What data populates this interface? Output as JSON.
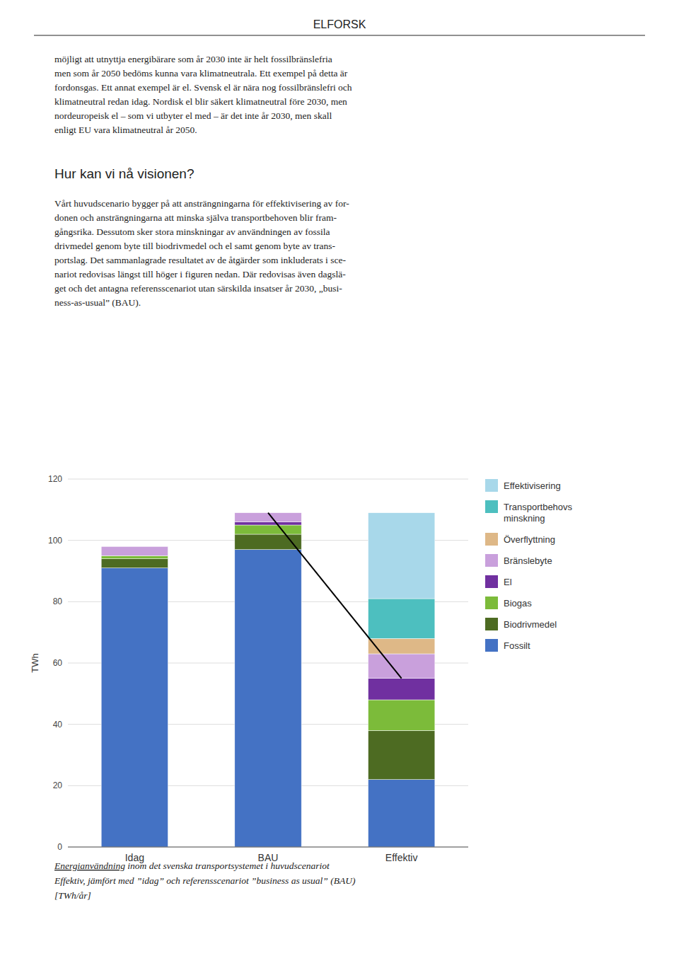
{
  "chart_data": {
    "type": "bar",
    "stacked": true,
    "categories": [
      "Idag",
      "BAU",
      "Effektiv"
    ],
    "series": [
      {
        "name": "Fossilt",
        "color": "#4472C4",
        "values": [
          91,
          97,
          22
        ]
      },
      {
        "name": "Biodrivmedel",
        "color": "#4D6B22",
        "values": [
          3,
          5,
          16
        ]
      },
      {
        "name": "Biogas",
        "color": "#7CBB3A",
        "values": [
          1,
          3,
          10
        ]
      },
      {
        "name": "El",
        "color": "#7030A0",
        "values": [
          0,
          1,
          7
        ]
      },
      {
        "name": "Bränslebyte",
        "color": "#C9A0DC",
        "values": [
          3,
          3,
          8
        ]
      },
      {
        "name": "Överflyttning",
        "color": "#DEB887",
        "values": [
          0,
          0,
          5
        ]
      },
      {
        "name": "Transportbehovs\nminskning",
        "color": "#4DBFBF",
        "values": [
          0,
          0,
          13
        ]
      },
      {
        "name": "Effektivisering",
        "color": "#A8D8EA",
        "values": [
          0,
          0,
          28
        ]
      }
    ],
    "ylabel": "TWh",
    "ylim": [
      0,
      120
    ],
    "yticks": [
      0,
      20,
      40,
      60,
      80,
      100,
      120
    ],
    "grid": true,
    "legend": "right",
    "line": {
      "categories": [
        "BAU",
        "Effektiv"
      ],
      "values": [
        109,
        55
      ]
    }
  },
  "page": {
    "header": "ELFORSK",
    "body_text1": "möjligt att utnyttja energibärare som år 2030 inte är helt fossilbränslefria\nmen som år 2050 bedöms kunna vara klimatneutrala. Ett exempel på detta är\nfordonsgas. Ett annat exempel är el. Svensk el är nära nog fossilbränslefri och\nklimatneutral redan idag. Nordisk el blir säkert klimatneutral före 2030, men\nnordeuropeisk el – som vi utbyter el med – är det inte år 2030, men skall\nenligt EU vara klimatneutral år 2050.",
    "subheading": "Hur kan vi nå visionen?",
    "body_text2": "Vårt huvudscenario bygger på att ansträngningarna för effektivisering av for-\ndonen och ansträngningarna att minska själva transportbehoven blir fram-\ngångsrika. Dessutom sker stora minskningar av användningen av fossila\ndrivmedel genom byte till biodrivmedel och el samt genom byte av trans-\nportslag. Det sammanlagrade resultatet av de åtgärder som inkluderats i sce-\nnariot redovisas längst till höger i figuren nedan. Där redovisas även dagslä-\nget och det antagna referensscenariot utan särskilda insatser år 2030, „busi-\nness-as-usual” (BAU).",
    "captions": [
      "Energianvändning inom det svenska transportsystemet i huvudscenariot",
      "Effektiv, jämfört med ”idag” och referensscenariot ”business as usual” (BAU)",
      "[TWh/år]"
    ]
  }
}
